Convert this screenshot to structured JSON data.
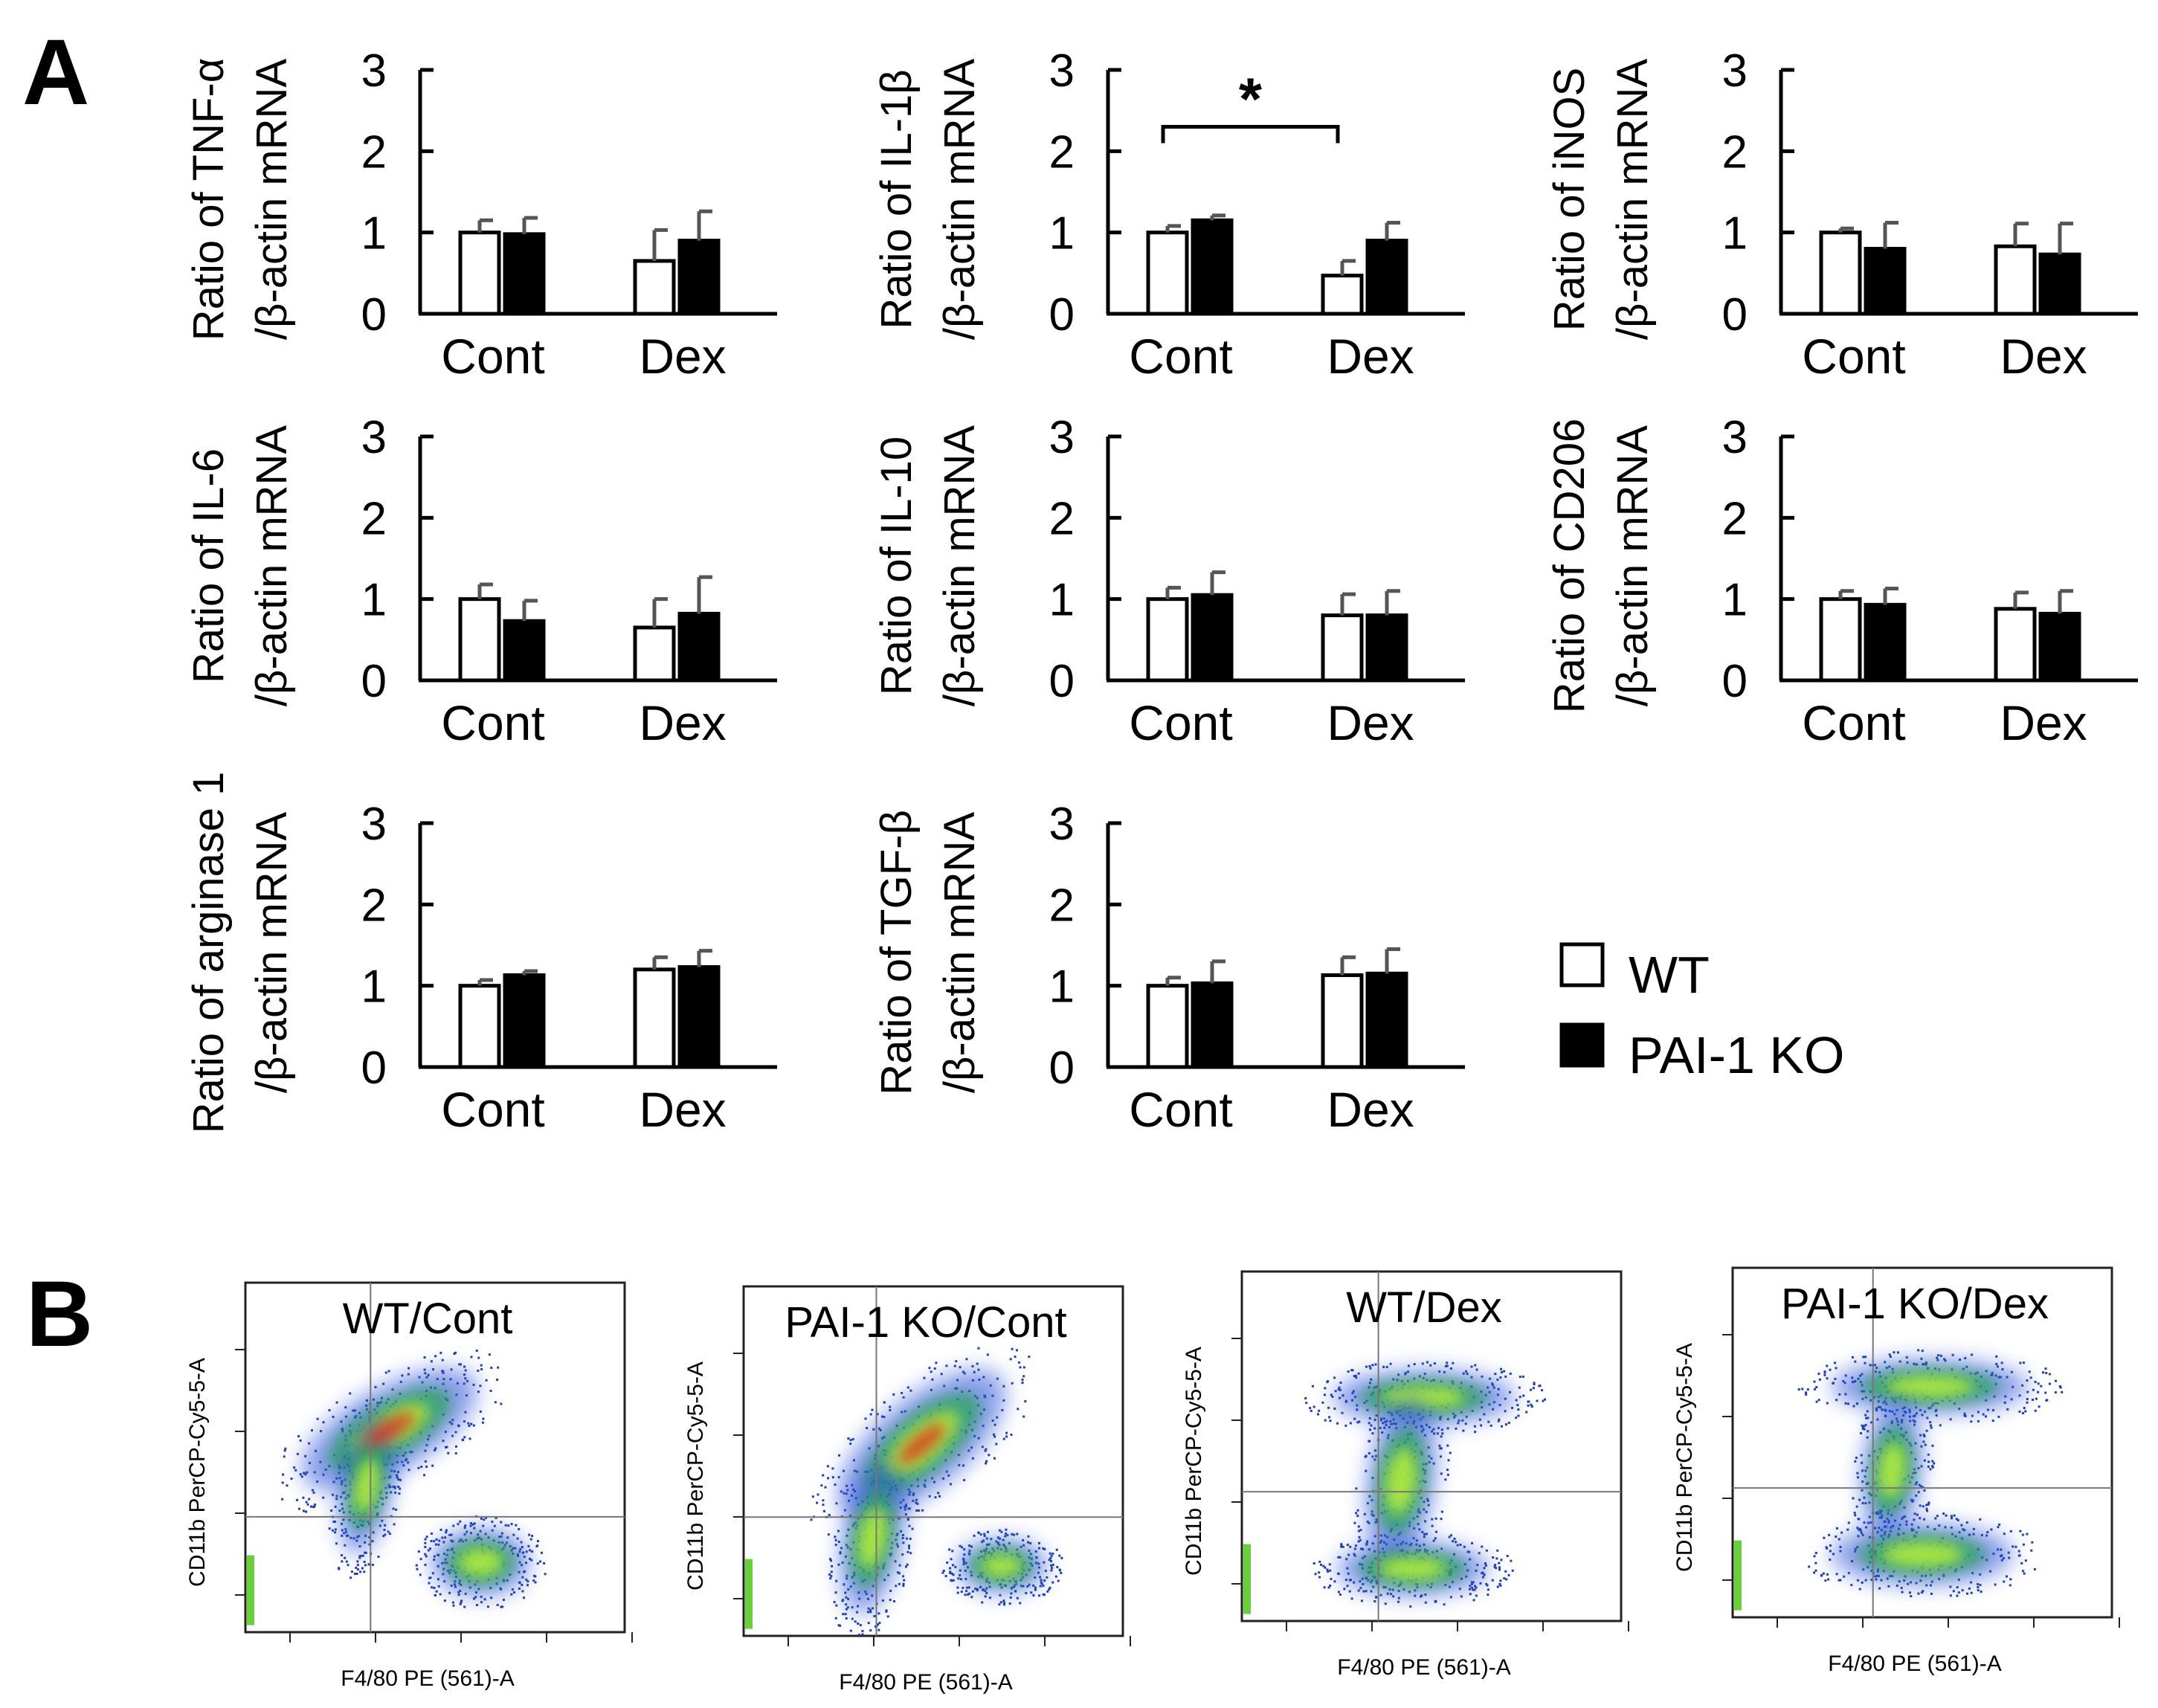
{
  "panel_labels": {
    "a": "A",
    "b": "B"
  },
  "colors": {
    "wt_fill": "#ffffff",
    "ko_fill": "#000000",
    "error_bar": "#555555",
    "axis": "#000000"
  },
  "legend": [
    {
      "label": "WT",
      "fill": "#ffffff"
    },
    {
      "label": "PAI-1 KO",
      "fill": "#000000"
    }
  ],
  "chart_data": [
    {
      "type": "bar",
      "ylabel_line1": "Ratio of TNF-α",
      "ylabel_line2": "/β-actin mRNA",
      "categories": [
        "Cont",
        "Dex"
      ],
      "yticks": [
        "0",
        "1",
        "2",
        "3"
      ],
      "ylim": [
        0,
        3
      ],
      "series": [
        {
          "name": "WT",
          "values": [
            1.0,
            0.65
          ],
          "errors": [
            0.15,
            0.38
          ]
        },
        {
          "name": "PAI-1 KO",
          "values": [
            0.98,
            0.9
          ],
          "errors": [
            0.2,
            0.36
          ]
        }
      ],
      "significance": ""
    },
    {
      "type": "bar",
      "ylabel_line1": "Ratio of IL-1β",
      "ylabel_line2": "/β-actin mRNA",
      "categories": [
        "Cont",
        "Dex"
      ],
      "yticks": [
        "0",
        "1",
        "2",
        "3"
      ],
      "ylim": [
        0,
        3
      ],
      "series": [
        {
          "name": "WT",
          "values": [
            1.0,
            0.47
          ],
          "errors": [
            0.08,
            0.18
          ]
        },
        {
          "name": "PAI-1 KO",
          "values": [
            1.15,
            0.9
          ],
          "errors": [
            0.06,
            0.22
          ]
        }
      ],
      "significance": "*"
    },
    {
      "type": "bar",
      "ylabel_line1": "Ratio of iNOS",
      "ylabel_line2": "/β-actin mRNA",
      "categories": [
        "Cont",
        "Dex"
      ],
      "yticks": [
        "0",
        "1",
        "2",
        "3"
      ],
      "ylim": [
        0,
        3
      ],
      "series": [
        {
          "name": "WT",
          "values": [
            1.0,
            0.83
          ],
          "errors": [
            0.05,
            0.28
          ]
        },
        {
          "name": "PAI-1 KO",
          "values": [
            0.8,
            0.73
          ],
          "errors": [
            0.32,
            0.38
          ]
        }
      ],
      "significance": ""
    },
    {
      "type": "bar",
      "ylabel_line1": "Ratio of IL-6",
      "ylabel_line2": "/β-actin mRNA",
      "categories": [
        "Cont",
        "Dex"
      ],
      "yticks": [
        "0",
        "1",
        "2",
        "3"
      ],
      "ylim": [
        0,
        3
      ],
      "series": [
        {
          "name": "WT",
          "values": [
            1.0,
            0.65
          ],
          "errors": [
            0.18,
            0.35
          ]
        },
        {
          "name": "PAI-1 KO",
          "values": [
            0.73,
            0.82
          ],
          "errors": [
            0.25,
            0.45
          ]
        }
      ],
      "significance": ""
    },
    {
      "type": "bar",
      "ylabel_line1": "Ratio of IL-10",
      "ylabel_line2": "/β-actin mRNA",
      "categories": [
        "Cont",
        "Dex"
      ],
      "yticks": [
        "0",
        "1",
        "2",
        "3"
      ],
      "ylim": [
        0,
        3
      ],
      "series": [
        {
          "name": "WT",
          "values": [
            1.0,
            0.8
          ],
          "errors": [
            0.14,
            0.26
          ]
        },
        {
          "name": "PAI-1 KO",
          "values": [
            1.05,
            0.8
          ],
          "errors": [
            0.28,
            0.3
          ]
        }
      ],
      "significance": ""
    },
    {
      "type": "bar",
      "ylabel_line1": "Ratio of CD206",
      "ylabel_line2": "/β-actin mRNA",
      "categories": [
        "Cont",
        "Dex"
      ],
      "yticks": [
        "0",
        "1",
        "2",
        "3"
      ],
      "ylim": [
        0,
        3
      ],
      "series": [
        {
          "name": "WT",
          "values": [
            1.0,
            0.88
          ],
          "errors": [
            0.1,
            0.2
          ]
        },
        {
          "name": "PAI-1 KO",
          "values": [
            0.93,
            0.82
          ],
          "errors": [
            0.2,
            0.28
          ]
        }
      ],
      "significance": ""
    },
    {
      "type": "bar",
      "ylabel_line1": "Ratio of arginase 1",
      "ylabel_line2": "/β-actin mRNA",
      "categories": [
        "Cont",
        "Dex"
      ],
      "yticks": [
        "0",
        "1",
        "2",
        "3"
      ],
      "ylim": [
        0,
        3
      ],
      "series": [
        {
          "name": "WT",
          "values": [
            1.0,
            1.2
          ],
          "errors": [
            0.07,
            0.15
          ]
        },
        {
          "name": "PAI-1 KO",
          "values": [
            1.13,
            1.23
          ],
          "errors": [
            0.05,
            0.2
          ]
        }
      ],
      "significance": ""
    },
    {
      "type": "bar",
      "ylabel_line1": "Ratio of TGF-β",
      "ylabel_line2": "/β-actin mRNA",
      "categories": [
        "Cont",
        "Dex"
      ],
      "yticks": [
        "0",
        "1",
        "2",
        "3"
      ],
      "ylim": [
        0,
        3
      ],
      "series": [
        {
          "name": "WT",
          "values": [
            1.0,
            1.13
          ],
          "errors": [
            0.1,
            0.22
          ]
        },
        {
          "name": "PAI-1 KO",
          "values": [
            1.03,
            1.15
          ],
          "errors": [
            0.27,
            0.3
          ]
        }
      ],
      "significance": ""
    }
  ],
  "flow_panels": [
    {
      "title": "WT/Cont",
      "xlabel": "F4/80 PE (561)-A",
      "ylabel": "CD11b PerCP-Cy5-5-A"
    },
    {
      "title": "PAI-1 KO/Cont",
      "xlabel": "F4/80 PE (561)-A",
      "ylabel": "CD11b PerCP-Cy5-5-A"
    },
    {
      "title": "WT/Dex",
      "xlabel": "F4/80 PE (561)-A",
      "ylabel": "CD11b PerCP-Cy5-5-A"
    },
    {
      "title": "PAI-1 KO/Dex",
      "xlabel": "F4/80 PE (561)-A",
      "ylabel": "CD11b PerCP-Cy5-5-A"
    }
  ]
}
